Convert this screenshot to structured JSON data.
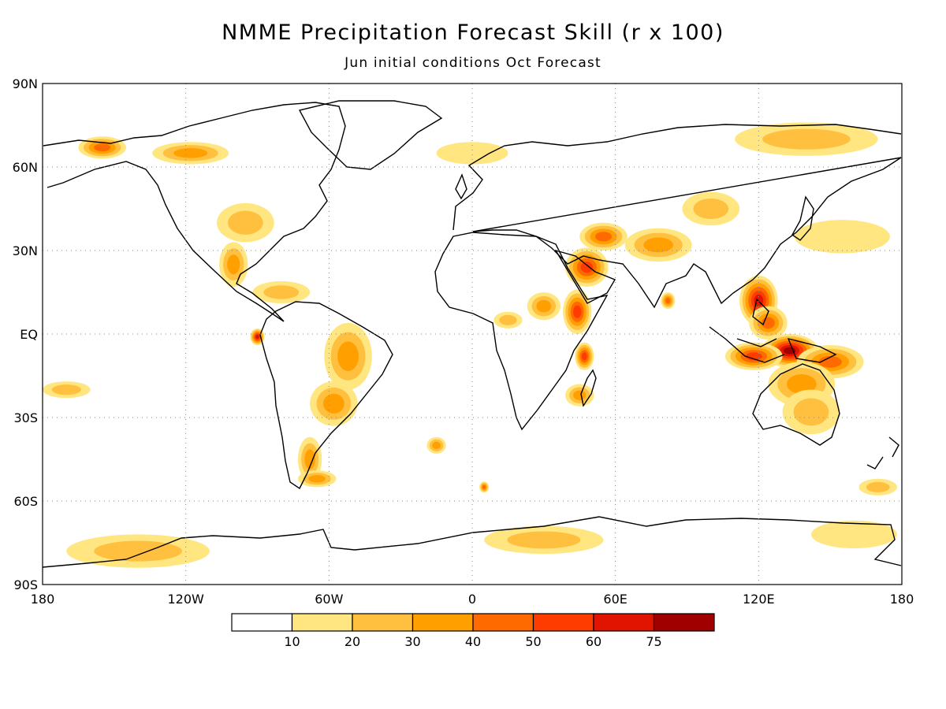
{
  "header": {
    "title": "NMME Precipitation Forecast Skill (r x 100)",
    "subtitle": "Jun initial conditions  Oct Forecast"
  },
  "map": {
    "projection": "equirectangular",
    "lon_range": [
      -180,
      180
    ],
    "lat_range": [
      -90,
      90
    ],
    "grid": true,
    "lat_ticks": [
      {
        "value": 90,
        "label": "90N"
      },
      {
        "value": 60,
        "label": "60N"
      },
      {
        "value": 30,
        "label": "30N"
      },
      {
        "value": 0,
        "label": "EQ"
      },
      {
        "value": -30,
        "label": "30S"
      },
      {
        "value": -60,
        "label": "60S"
      },
      {
        "value": -90,
        "label": "90S"
      }
    ],
    "lon_ticks": [
      {
        "value": -180,
        "label": "180"
      },
      {
        "value": -120,
        "label": "120W"
      },
      {
        "value": -60,
        "label": "60W"
      },
      {
        "value": 0,
        "label": "0"
      },
      {
        "value": 60,
        "label": "60E"
      },
      {
        "value": 120,
        "label": "120E"
      },
      {
        "value": 180,
        "label": "180"
      }
    ]
  },
  "colorbar": {
    "colors": [
      "#ffffff",
      "#ffe680",
      "#ffc040",
      "#ffa000",
      "#ff6a00",
      "#ff3c00",
      "#e01400",
      "#a00000"
    ],
    "labels": [
      "10",
      "20",
      "30",
      "40",
      "50",
      "60",
      "75"
    ]
  },
  "skill_regions": [
    {
      "lon": 120,
      "lat": 12,
      "rx": 8,
      "ry": 9,
      "level": 6
    },
    {
      "lon": 133,
      "lat": -6,
      "rx": 12,
      "ry": 6,
      "level": 7
    },
    {
      "lon": 118,
      "lat": -8,
      "rx": 12,
      "ry": 5,
      "level": 5
    },
    {
      "lon": 150,
      "lat": -10,
      "rx": 14,
      "ry": 6,
      "level": 4
    },
    {
      "lon": 138,
      "lat": -18,
      "rx": 14,
      "ry": 8,
      "level": 3
    },
    {
      "lon": 142,
      "lat": -28,
      "rx": 12,
      "ry": 8,
      "level": 2
    },
    {
      "lon": 124,
      "lat": 4,
      "rx": 8,
      "ry": 6,
      "level": 4
    },
    {
      "lon": 44,
      "lat": 8,
      "rx": 6,
      "ry": 8,
      "level": 5
    },
    {
      "lon": 47,
      "lat": -8,
      "rx": 4,
      "ry": 5,
      "level": 5
    },
    {
      "lon": 48,
      "lat": 24,
      "rx": 9,
      "ry": 7,
      "level": 5
    },
    {
      "lon": 55,
      "lat": 35,
      "rx": 10,
      "ry": 5,
      "level": 4
    },
    {
      "lon": 78,
      "lat": 32,
      "rx": 14,
      "ry": 6,
      "level": 3
    },
    {
      "lon": 100,
      "lat": 45,
      "rx": 12,
      "ry": 6,
      "level": 2
    },
    {
      "lon": 30,
      "lat": 10,
      "rx": 7,
      "ry": 5,
      "level": 3
    },
    {
      "lon": 15,
      "lat": 5,
      "rx": 6,
      "ry": 3,
      "level": 2
    },
    {
      "lon": 82,
      "lat": 12,
      "rx": 3,
      "ry": 3,
      "level": 4
    },
    {
      "lon": 45,
      "lat": -22,
      "rx": 6,
      "ry": 4,
      "level": 3
    },
    {
      "lon": -52,
      "lat": -8,
      "rx": 10,
      "ry": 12,
      "level": 3
    },
    {
      "lon": -58,
      "lat": -25,
      "rx": 10,
      "ry": 8,
      "level": 3
    },
    {
      "lon": -68,
      "lat": -45,
      "rx": 5,
      "ry": 8,
      "level": 3
    },
    {
      "lon": -65,
      "lat": -52,
      "rx": 8,
      "ry": 3,
      "level": 3
    },
    {
      "lon": -155,
      "lat": 67,
      "rx": 10,
      "ry": 4,
      "level": 4
    },
    {
      "lon": -118,
      "lat": 65,
      "rx": 16,
      "ry": 4,
      "level": 3
    },
    {
      "lon": -100,
      "lat": 25,
      "rx": 6,
      "ry": 8,
      "level": 3
    },
    {
      "lon": -95,
      "lat": 40,
      "rx": 12,
      "ry": 7,
      "level": 2
    },
    {
      "lon": -80,
      "lat": 15,
      "rx": 12,
      "ry": 4,
      "level": 2
    },
    {
      "lon": -90,
      "lat": -1,
      "rx": 3,
      "ry": 3,
      "level": 6
    },
    {
      "lon": -170,
      "lat": -20,
      "rx": 10,
      "ry": 3,
      "level": 2
    },
    {
      "lon": -140,
      "lat": -78,
      "rx": 30,
      "ry": 6,
      "level": 2
    },
    {
      "lon": 30,
      "lat": -74,
      "rx": 25,
      "ry": 5,
      "level": 2
    },
    {
      "lon": 160,
      "lat": -72,
      "rx": 18,
      "ry": 5,
      "level": 1
    },
    {
      "lon": 140,
      "lat": 70,
      "rx": 30,
      "ry": 6,
      "level": 2
    },
    {
      "lon": 155,
      "lat": 35,
      "rx": 20,
      "ry": 6,
      "level": 1
    },
    {
      "lon": 0,
      "lat": 65,
      "rx": 15,
      "ry": 4,
      "level": 1
    },
    {
      "lon": 170,
      "lat": -55,
      "rx": 8,
      "ry": 3,
      "level": 2
    },
    {
      "lon": 5,
      "lat": -55,
      "rx": 2,
      "ry": 2,
      "level": 4
    },
    {
      "lon": -15,
      "lat": -40,
      "rx": 4,
      "ry": 3,
      "level": 3
    }
  ]
}
